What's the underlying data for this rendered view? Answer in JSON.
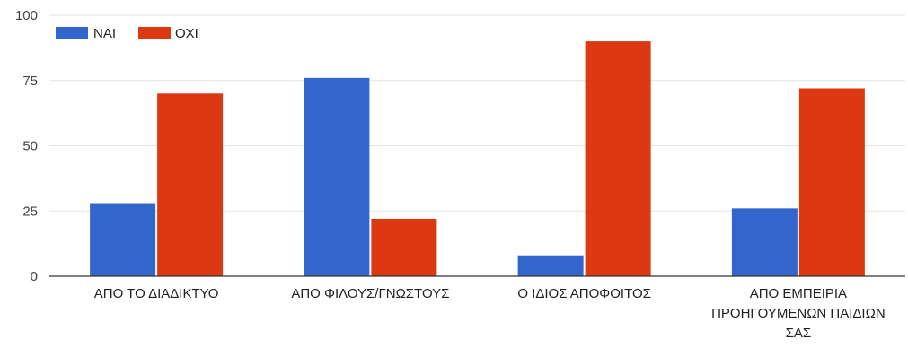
{
  "chart_data": {
    "type": "bar",
    "categories": [
      [
        "ΑΠΟ ΤΟ ΔΙΑΔΙΚΤΥΟ"
      ],
      [
        "ΑΠΟ ΦΙΛΟΥΣ/ΓΝΩΣΤΟΥΣ"
      ],
      [
        "Ο ΙΔΙΟΣ ΑΠΟΦΟΙΤΟΣ"
      ],
      [
        "ΑΠΟ ΕΜΠΕΙΡΙΑ",
        "ΠΡΟΗΓΟΥΜΕΝΩΝ ΠΑΙΔΙΩΝ",
        "ΣΑΣ"
      ]
    ],
    "series": [
      {
        "name": "ΝΑΙ",
        "color": "#3366cc",
        "values": [
          28,
          76,
          8,
          26
        ]
      },
      {
        "name": "ΟΧΙ",
        "color": "#dc3912",
        "values": [
          70,
          22,
          90,
          72
        ]
      }
    ],
    "title": "",
    "xlabel": "",
    "ylabel": "",
    "ylim": [
      0,
      100
    ],
    "yticks": [
      0,
      25,
      50,
      75,
      100
    ],
    "grid": true,
    "legend_position": "top-left"
  }
}
